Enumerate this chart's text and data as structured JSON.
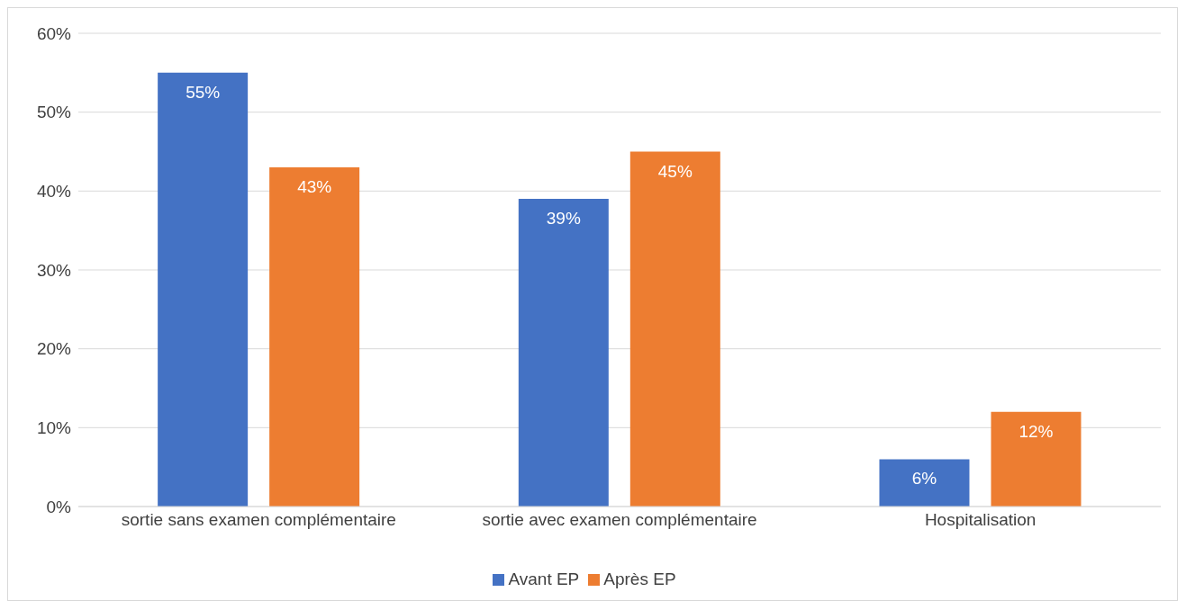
{
  "chart_data": {
    "type": "bar",
    "categories": [
      "sortie sans examen complémentaire",
      "sortie avec examen complémentaire",
      "Hospitalisation"
    ],
    "series": [
      {
        "name": "Avant EP",
        "color": "#4472c4",
        "values": [
          55,
          39,
          6
        ],
        "value_labels": [
          "55%",
          "39%",
          "6%"
        ]
      },
      {
        "name": "Après EP",
        "color": "#ed7d31",
        "values": [
          43,
          45,
          12
        ],
        "value_labels": [
          "43%",
          "45%",
          "12%"
        ]
      }
    ],
    "ylim": [
      0,
      60
    ],
    "yticks": [
      {
        "value": 0,
        "label": "0%"
      },
      {
        "value": 10,
        "label": "10%"
      },
      {
        "value": 20,
        "label": "20%"
      },
      {
        "value": 30,
        "label": "30%"
      },
      {
        "value": 40,
        "label": "40%"
      },
      {
        "value": 50,
        "label": "50%"
      },
      {
        "value": 60,
        "label": "60%"
      }
    ],
    "grid": "y",
    "legend": "bottom"
  }
}
